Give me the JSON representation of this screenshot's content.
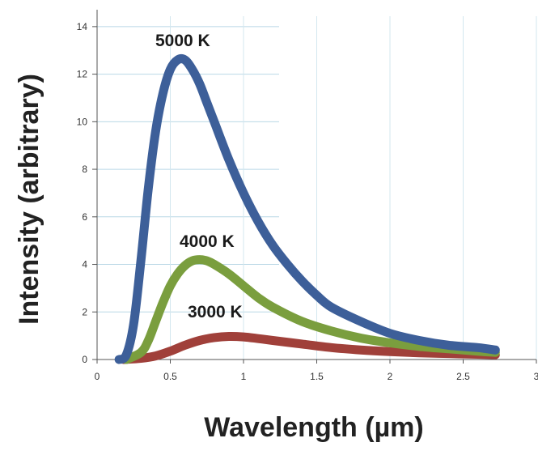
{
  "chart_data": {
    "type": "line",
    "title": "",
    "xlabel": "Wavelength (µm)",
    "ylabel": "Intensity (arbitrary)",
    "xlim": [
      0,
      3
    ],
    "ylim": [
      0,
      15
    ],
    "x_ticks": [
      "0",
      "0.5",
      "1",
      "1.5",
      "2",
      "2.5",
      "3"
    ],
    "y_ticks": [
      "0",
      "2",
      "4",
      "6",
      "8",
      "10",
      "12",
      "14"
    ],
    "grid": true,
    "legend": "none",
    "series": [
      {
        "name": "5000 K",
        "color": "#3d5f99",
        "x": [
          0.15,
          0.2,
          0.25,
          0.3,
          0.35,
          0.4,
          0.45,
          0.5,
          0.55,
          0.6,
          0.65,
          0.7,
          0.75,
          0.8,
          0.9,
          1.0,
          1.1,
          1.2,
          1.3,
          1.4,
          1.5,
          1.6,
          1.8,
          2.0,
          2.2,
          2.4,
          2.6,
          2.72
        ],
        "y": [
          0,
          0.2,
          1.5,
          4.2,
          7.2,
          9.6,
          11.2,
          12.2,
          12.6,
          12.6,
          12.2,
          11.6,
          10.8,
          10.0,
          8.4,
          7.0,
          5.8,
          4.8,
          4.0,
          3.3,
          2.7,
          2.2,
          1.6,
          1.1,
          0.8,
          0.6,
          0.5,
          0.4
        ]
      },
      {
        "name": "4000 K",
        "color": "#7a9e3e",
        "x": [
          0.2,
          0.3,
          0.35,
          0.4,
          0.45,
          0.5,
          0.55,
          0.6,
          0.65,
          0.7,
          0.75,
          0.8,
          0.9,
          1.0,
          1.1,
          1.2,
          1.4,
          1.6,
          1.8,
          2.0,
          2.2,
          2.4,
          2.6,
          2.72
        ],
        "y": [
          0,
          0.3,
          0.8,
          1.6,
          2.4,
          3.1,
          3.6,
          3.95,
          4.15,
          4.2,
          4.15,
          4.0,
          3.6,
          3.1,
          2.6,
          2.2,
          1.6,
          1.2,
          0.9,
          0.7,
          0.55,
          0.45,
          0.35,
          0.3
        ]
      },
      {
        "name": "3000 K",
        "color": "#a0403a",
        "x": [
          0.18,
          0.3,
          0.4,
          0.5,
          0.6,
          0.7,
          0.8,
          0.9,
          1.0,
          1.1,
          1.2,
          1.4,
          1.6,
          1.8,
          2.0,
          2.2,
          2.4,
          2.6,
          2.72
        ],
        "y": [
          0,
          0.05,
          0.15,
          0.35,
          0.6,
          0.8,
          0.92,
          0.97,
          0.95,
          0.88,
          0.8,
          0.65,
          0.5,
          0.4,
          0.33,
          0.28,
          0.25,
          0.22,
          0.2
        ]
      }
    ]
  }
}
